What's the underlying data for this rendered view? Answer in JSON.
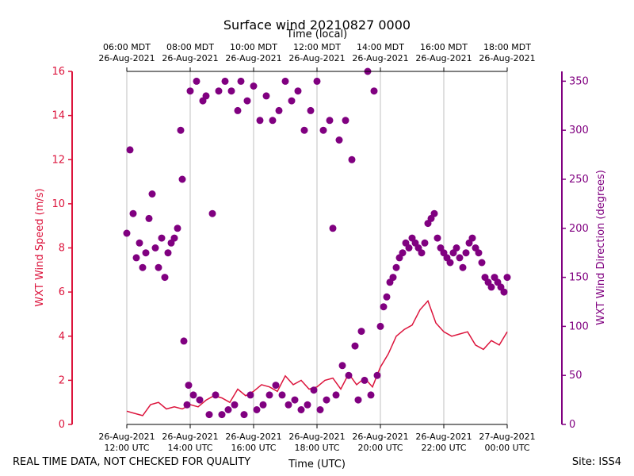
{
  "chart_data": {
    "type": "line+scatter",
    "title": "Surface wind 20210827 0000",
    "top_axis_label": "Time (local)",
    "top_ticks": [
      {
        "h": 12,
        "line1": "06:00 MDT",
        "line2": "26-Aug-2021"
      },
      {
        "h": 14,
        "line1": "08:00 MDT",
        "line2": "26-Aug-2021"
      },
      {
        "h": 16,
        "line1": "10:00 MDT",
        "line2": "26-Aug-2021"
      },
      {
        "h": 18,
        "line1": "12:00 MDT",
        "line2": "26-Aug-2021"
      },
      {
        "h": 20,
        "line1": "14:00 MDT",
        "line2": "26-Aug-2021"
      },
      {
        "h": 22,
        "line1": "16:00 MDT",
        "line2": "26-Aug-2021"
      },
      {
        "h": 24,
        "line1": "18:00 MDT",
        "line2": "26-Aug-2021"
      }
    ],
    "bottom_ticks": [
      {
        "h": 12,
        "line1": "26-Aug-2021",
        "line2": "12:00 UTC"
      },
      {
        "h": 14,
        "line1": "26-Aug-2021",
        "line2": "14:00 UTC"
      },
      {
        "h": 16,
        "line1": "26-Aug-2021",
        "line2": "16:00 UTC"
      },
      {
        "h": 18,
        "line1": "26-Aug-2021",
        "line2": "18:00 UTC"
      },
      {
        "h": 20,
        "line1": "26-Aug-2021",
        "line2": "20:00 UTC"
      },
      {
        "h": 22,
        "line1": "26-Aug-2021",
        "line2": "22:00 UTC"
      },
      {
        "h": 24,
        "line1": "27-Aug-2021",
        "line2": "00:00 UTC"
      }
    ],
    "xlim_utc_hours": [
      12,
      24
    ],
    "xlabel": "Time (UTC)",
    "left_axis": {
      "label": "WXT Wind Speed (m/s)",
      "ylim": [
        0,
        16
      ],
      "ticks": [
        0,
        2,
        4,
        6,
        8,
        10,
        12,
        14,
        16
      ],
      "color": "#dc143c"
    },
    "right_axis": {
      "label": "WXT Wind Direction (degrees)",
      "ylim": [
        0,
        360
      ],
      "ticks": [
        0,
        50,
        100,
        150,
        200,
        250,
        300,
        350
      ],
      "color": "#800080"
    },
    "grid": "vertical",
    "series": [
      {
        "name": "WXT Wind Speed (m/s)",
        "kind": "line",
        "axis": "left",
        "color": "#dc143c",
        "x": [
          12.0,
          12.25,
          12.5,
          12.75,
          13.0,
          13.25,
          13.5,
          13.75,
          14.0,
          14.25,
          14.5,
          14.75,
          15.0,
          15.25,
          15.5,
          15.75,
          16.0,
          16.25,
          16.5,
          16.75,
          17.0,
          17.25,
          17.5,
          17.75,
          18.0,
          18.25,
          18.5,
          18.75,
          19.0,
          19.25,
          19.5,
          19.75,
          20.0,
          20.25,
          20.5,
          20.75,
          21.0,
          21.25,
          21.5,
          21.75,
          22.0,
          22.25,
          22.5,
          22.75,
          23.0,
          23.25,
          23.5,
          23.75,
          24.0
        ],
        "y": [
          0.6,
          0.5,
          0.4,
          0.9,
          1.0,
          0.7,
          0.8,
          0.7,
          0.9,
          0.8,
          1.1,
          1.3,
          1.2,
          1.0,
          1.6,
          1.3,
          1.5,
          1.8,
          1.7,
          1.5,
          2.2,
          1.8,
          2.0,
          1.6,
          1.7,
          2.0,
          2.1,
          1.6,
          2.3,
          1.8,
          2.1,
          1.7,
          2.6,
          3.2,
          4.0,
          4.3,
          4.5,
          5.2,
          5.6,
          4.6,
          4.2,
          4.0,
          4.1,
          4.2,
          3.6,
          3.4,
          3.8,
          3.6,
          4.2
        ]
      },
      {
        "name": "WXT Wind Direction (degrees)",
        "kind": "scatter",
        "axis": "right",
        "color": "#800080",
        "x": [
          12.0,
          12.1,
          12.2,
          12.3,
          12.4,
          12.5,
          12.6,
          12.7,
          12.8,
          12.9,
          13.0,
          13.1,
          13.2,
          13.3,
          13.4,
          13.5,
          13.6,
          13.7,
          13.75,
          13.8,
          13.9,
          13.95,
          14.0,
          14.1,
          14.2,
          14.3,
          14.4,
          14.5,
          14.6,
          14.7,
          14.8,
          14.9,
          15.0,
          15.1,
          15.2,
          15.3,
          15.4,
          15.5,
          15.6,
          15.7,
          15.8,
          15.9,
          16.0,
          16.1,
          16.2,
          16.3,
          16.4,
          16.5,
          16.6,
          16.7,
          16.8,
          16.9,
          17.0,
          17.1,
          17.2,
          17.3,
          17.4,
          17.5,
          17.6,
          17.7,
          17.8,
          17.9,
          18.0,
          18.1,
          18.2,
          18.3,
          18.4,
          18.5,
          18.6,
          18.7,
          18.8,
          18.9,
          19.0,
          19.1,
          19.2,
          19.3,
          19.4,
          19.5,
          19.6,
          19.7,
          19.8,
          19.9,
          20.0,
          20.1,
          20.2,
          20.3,
          20.4,
          20.5,
          20.6,
          20.7,
          20.8,
          20.9,
          21.0,
          21.1,
          21.2,
          21.3,
          21.4,
          21.5,
          21.6,
          21.7,
          21.8,
          21.9,
          22.0,
          22.1,
          22.2,
          22.3,
          22.4,
          22.5,
          22.6,
          22.7,
          22.8,
          22.9,
          23.0,
          23.1,
          23.2,
          23.3,
          23.4,
          23.5,
          23.6,
          23.7,
          23.8,
          23.9,
          24.0
        ],
        "y": [
          195,
          280,
          215,
          170,
          185,
          160,
          175,
          210,
          235,
          180,
          160,
          190,
          150,
          175,
          185,
          190,
          200,
          300,
          250,
          85,
          20,
          40,
          340,
          30,
          350,
          25,
          330,
          335,
          10,
          215,
          30,
          340,
          10,
          350,
          15,
          340,
          20,
          320,
          350,
          10,
          330,
          30,
          345,
          15,
          310,
          20,
          335,
          30,
          310,
          40,
          320,
          30,
          350,
          20,
          330,
          25,
          340,
          15,
          300,
          20,
          320,
          35,
          350,
          15,
          300,
          25,
          310,
          200,
          30,
          290,
          60,
          310,
          50,
          270,
          80,
          25,
          95,
          45,
          360,
          30,
          340,
          50,
          100,
          120,
          130,
          145,
          150,
          160,
          170,
          175,
          185,
          180,
          190,
          185,
          180,
          175,
          185,
          205,
          210,
          215,
          190,
          180,
          175,
          170,
          165,
          175,
          180,
          170,
          160,
          175,
          185,
          190,
          180,
          175,
          165,
          150,
          145,
          140,
          150,
          145,
          140,
          135,
          150
        ]
      }
    ]
  },
  "footer": {
    "left_note": "REAL TIME DATA, NOT CHECKED FOR QUALITY",
    "site": "Site: ISS4"
  }
}
